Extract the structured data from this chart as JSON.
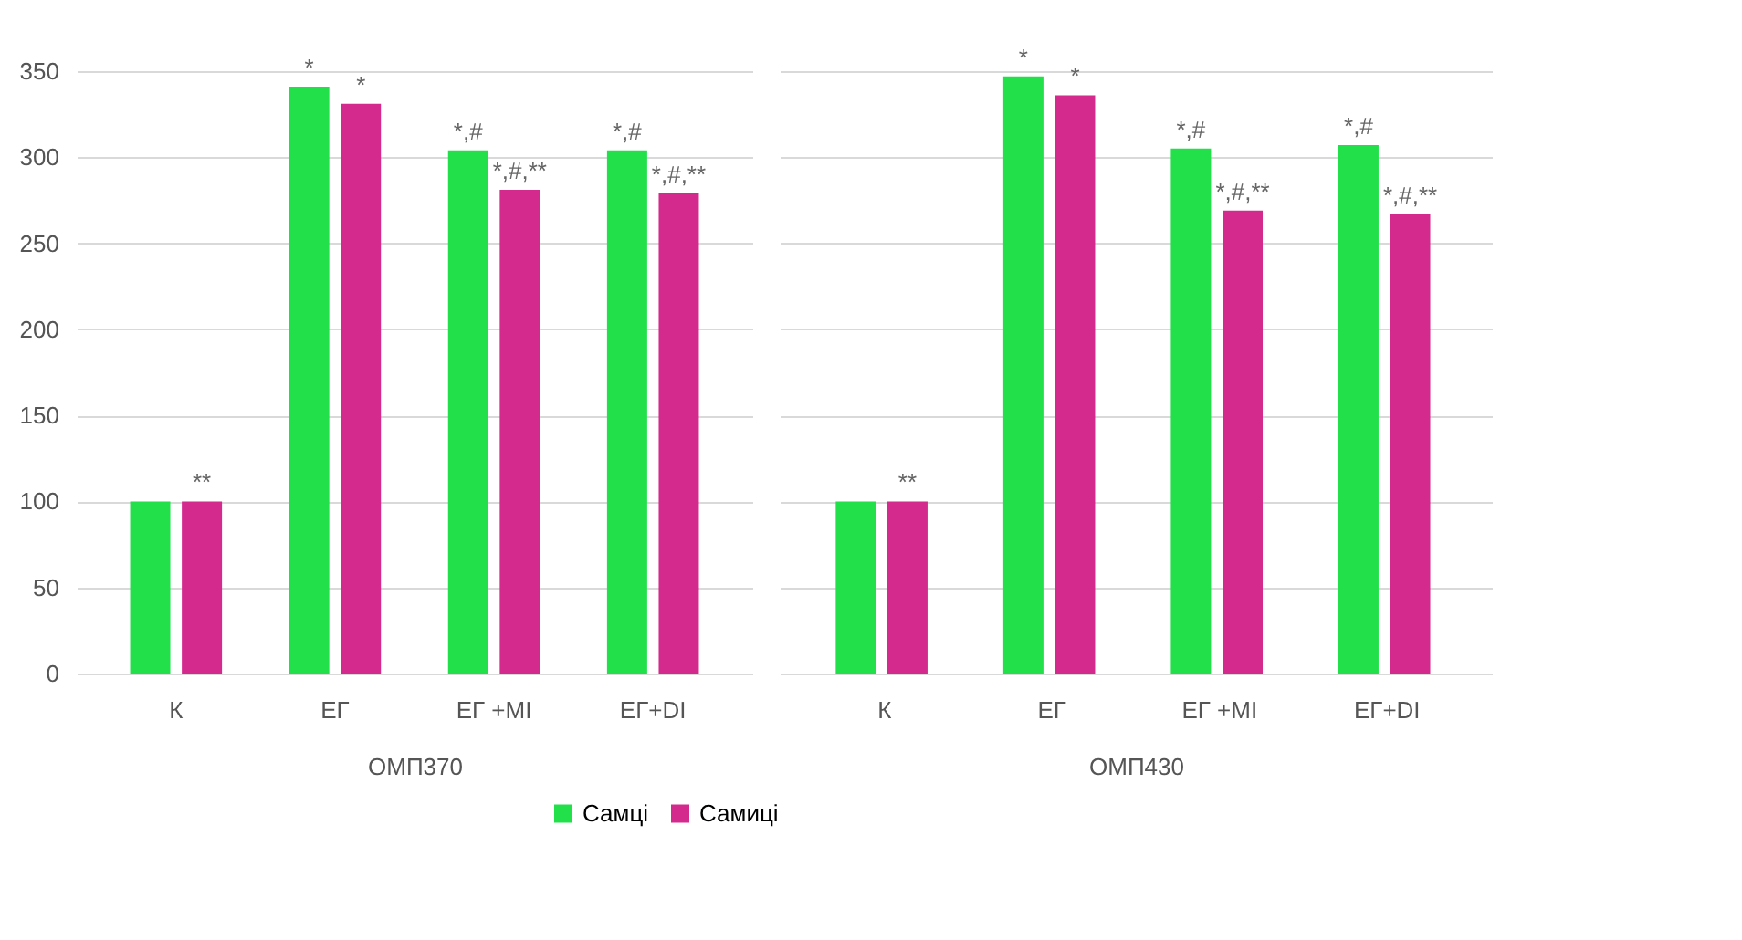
{
  "chart_data": [
    {
      "type": "bar",
      "xlabel": "ОМП370",
      "categories": [
        "К",
        "ЕГ",
        "ЕГ +МІ",
        "ЕГ+DI"
      ],
      "ylim": [
        0,
        350
      ],
      "yticks": [
        0,
        50,
        100,
        150,
        200,
        250,
        300,
        350
      ],
      "grid": "y",
      "legend": "bottom",
      "series": [
        {
          "name": "Самці",
          "color": "#22e04a",
          "values": [
            100,
            341,
            304,
            304
          ],
          "value_labels": [
            null,
            "*",
            "*,#",
            "*,#"
          ]
        },
        {
          "name": "Самиці",
          "color": "#d42a8e",
          "values": [
            100,
            331,
            281,
            279
          ],
          "value_labels": [
            "**",
            "*",
            "*,#,**",
            "*,#,**"
          ]
        }
      ]
    },
    {
      "type": "bar",
      "xlabel": "ОМП430",
      "categories": [
        "К",
        "ЕГ",
        "ЕГ +МІ",
        "ЕГ+DI"
      ],
      "ylim": [
        0,
        350
      ],
      "yticks": [
        0,
        50,
        100,
        150,
        200,
        250,
        300,
        350
      ],
      "grid": "y",
      "tick_labels": "x",
      "series": [
        {
          "color": "#22e04a",
          "values": [
            100,
            347,
            305,
            307
          ],
          "value_labels": [
            null,
            "*",
            "*,#",
            "*,#"
          ]
        },
        {
          "color": "#d42a8e",
          "values": [
            100,
            336,
            269,
            267
          ],
          "value_labels": [
            "**",
            "*",
            "*,#,**",
            "*,#,**"
          ]
        }
      ]
    }
  ]
}
